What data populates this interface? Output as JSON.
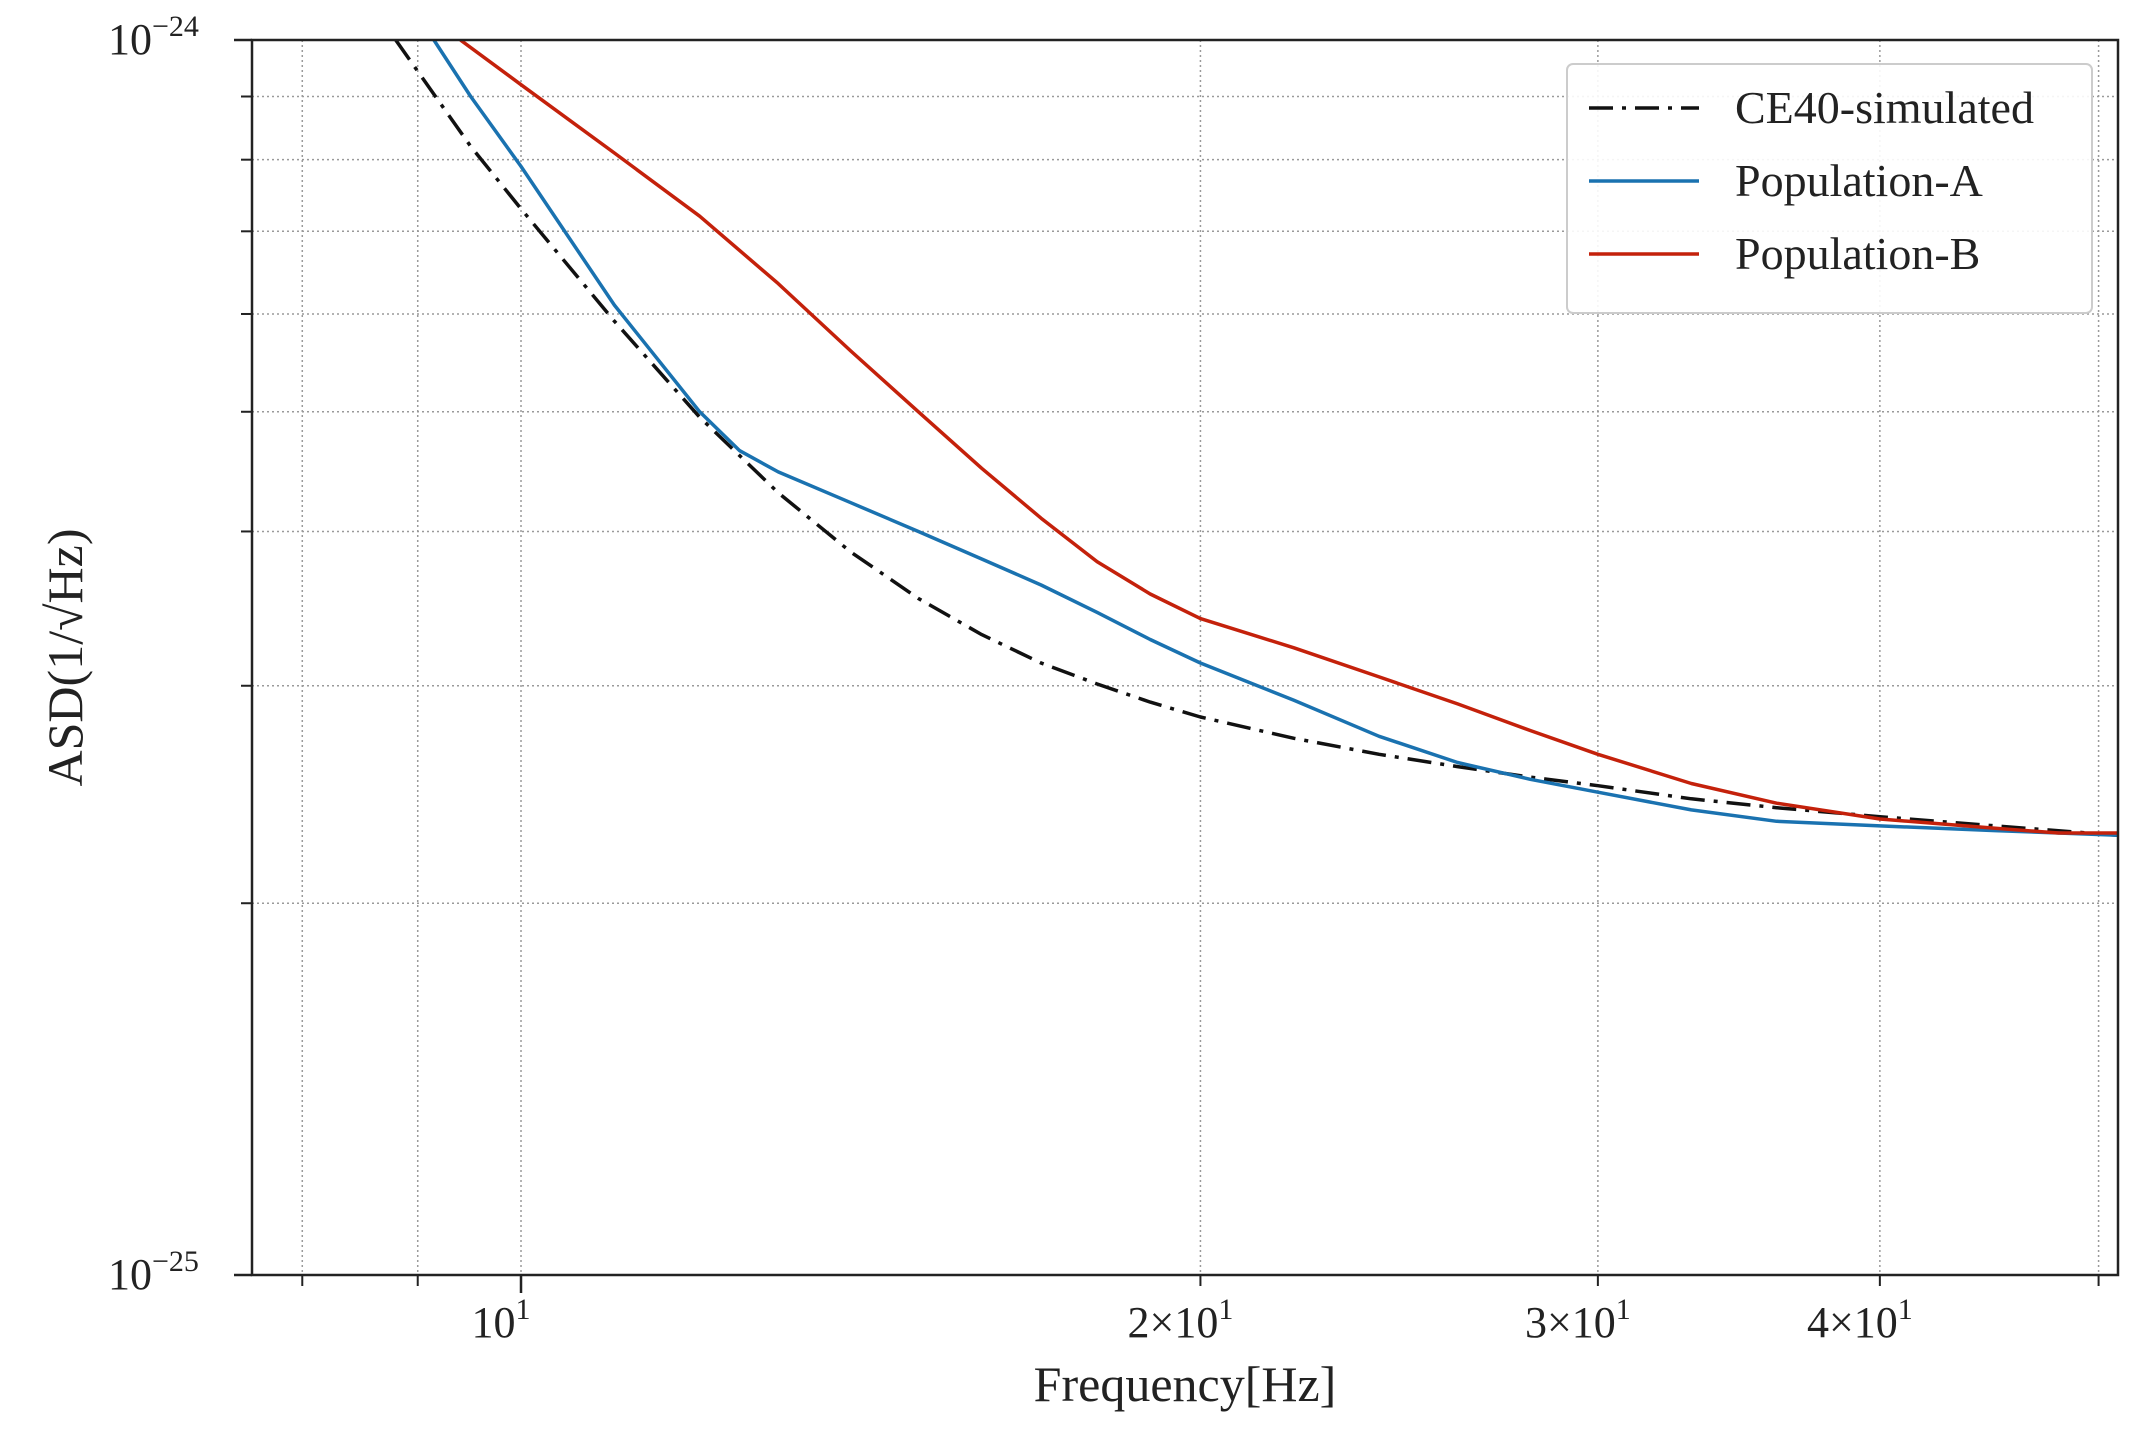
{
  "chart_data": {
    "type": "line",
    "title": "",
    "xlabel": "Frequency[Hz]",
    "ylabel": "ASD(1/√Hz)",
    "xscale": "log",
    "yscale": "log",
    "xlim": [
      7.6,
      51
    ],
    "ylim": [
      1e-25,
      1e-24
    ],
    "grid": true,
    "legend_position": "top-right",
    "x_ticks": [
      {
        "value": 10,
        "base": "10",
        "exp": "1"
      },
      {
        "value": 20,
        "base": "2×10",
        "exp": "1"
      },
      {
        "value": 30,
        "base": "3×10",
        "exp": "1"
      },
      {
        "value": 40,
        "base": "4×10",
        "exp": "1"
      }
    ],
    "y_ticks": [
      {
        "value": 1e-25,
        "base": "10",
        "exp": "−25"
      },
      {
        "value": 1e-24,
        "base": "10",
        "exp": "−24"
      }
    ],
    "series": [
      {
        "name": "CE40-simulated",
        "color": "#111111",
        "dash": "dashdot",
        "x": [
          8.8,
          9.5,
          10.0,
          11.0,
          12.0,
          13.0,
          14.0,
          15.0,
          16.0,
          17.0,
          18.0,
          19.0,
          20.0,
          22.0,
          24.0,
          26.0,
          28.0,
          30.0,
          33.0,
          36.0,
          40.0,
          45.0,
          51.0
        ],
        "y": [
          1e-24,
          8.2e-25,
          7.3e-25,
          5.92e-25,
          4.95e-25,
          4.3e-25,
          3.85e-25,
          3.53e-25,
          3.3e-25,
          3.13e-25,
          3.01e-25,
          2.91e-25,
          2.83e-25,
          2.72e-25,
          2.64e-25,
          2.58e-25,
          2.53e-25,
          2.49e-25,
          2.43e-25,
          2.39e-25,
          2.35e-25,
          2.31e-25,
          2.27e-25
        ]
      },
      {
        "name": "Population-A",
        "color": "#1a72b0",
        "dash": "solid",
        "x": [
          9.15,
          9.5,
          10.0,
          11.0,
          12.0,
          12.5,
          13.0,
          14.0,
          15.0,
          16.0,
          17.0,
          18.0,
          19.0,
          20.0,
          22.0,
          24.0,
          26.0,
          28.0,
          30.0,
          33.0,
          36.0,
          40.0,
          45.0,
          51.0
        ],
        "y": [
          1e-24,
          9e-25,
          7.9e-25,
          6.1e-25,
          5e-25,
          4.65e-25,
          4.47e-25,
          4.22e-25,
          4e-25,
          3.8e-25,
          3.62e-25,
          3.44e-25,
          3.27e-25,
          3.13e-25,
          2.92e-25,
          2.73e-25,
          2.6e-25,
          2.52e-25,
          2.46e-25,
          2.38e-25,
          2.33e-25,
          2.31e-25,
          2.29e-25,
          2.27e-25
        ]
      },
      {
        "name": "Population-B",
        "color": "#c4210b",
        "dash": "solid",
        "x": [
          9.4,
          10.0,
          11.0,
          12.0,
          13.0,
          14.0,
          15.0,
          16.0,
          17.0,
          18.0,
          19.0,
          20.0,
          22.0,
          24.0,
          26.0,
          28.0,
          30.0,
          33.0,
          36.0,
          40.0,
          45.0,
          48.0,
          51.0
        ],
        "y": [
          1e-24,
          9.2e-25,
          8.1e-25,
          7.2e-25,
          6.35e-25,
          5.6e-25,
          5e-25,
          4.5e-25,
          4.1e-25,
          3.78e-25,
          3.56e-25,
          3.4e-25,
          3.22e-25,
          3.05e-25,
          2.9e-25,
          2.76e-25,
          2.64e-25,
          2.5e-25,
          2.41e-25,
          2.34e-25,
          2.3e-25,
          2.28e-25,
          2.28e-25
        ]
      }
    ]
  }
}
